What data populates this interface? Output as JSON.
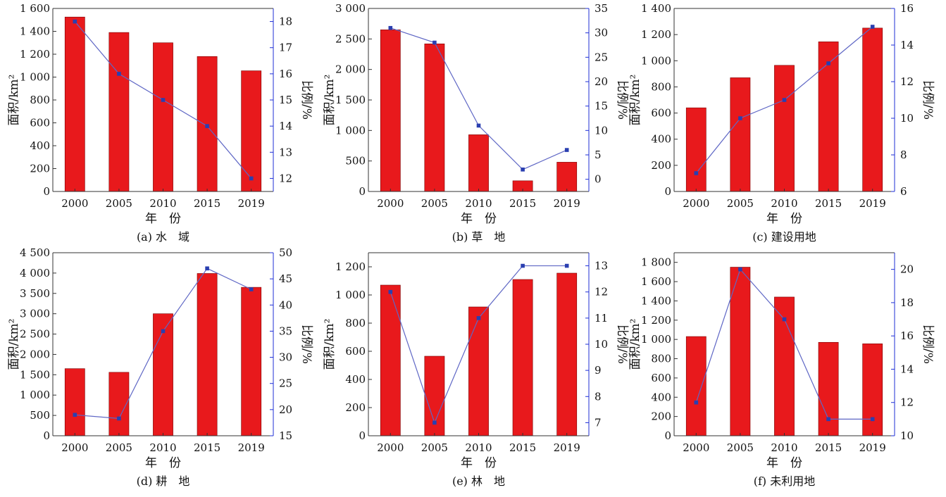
{
  "colors": {
    "bar": "#e8191c",
    "bar_edge": "#7a0000",
    "line": "#5f67c5",
    "marker": "#2a3fb0",
    "axis": "#333333",
    "right_axis": "#1f2fd6"
  },
  "chart_data": [
    {
      "type": "bar+line",
      "caption": "(a) 水　域",
      "xlabel": "年　份",
      "ylabel_left": "面积/km²",
      "ylabel_right": "比例/%",
      "categories": [
        "2000",
        "2005",
        "2010",
        "2015",
        "2019"
      ],
      "left_axis": {
        "min": 0,
        "max": 1600,
        "ticks": [
          0,
          200,
          400,
          600,
          800,
          1000,
          1200,
          1400,
          1600
        ],
        "tick_labels": [
          "0",
          "200",
          "400",
          "600",
          "800",
          "1 000",
          "1 200",
          "1 400",
          "1 600"
        ]
      },
      "right_axis": {
        "min": 11.5,
        "max": 18.5,
        "ticks": [
          12,
          13,
          14,
          15,
          16,
          17,
          18
        ],
        "tick_labels": [
          "12",
          "13",
          "14",
          "15",
          "16",
          "17",
          "18"
        ]
      },
      "series": [
        {
          "kind": "bar",
          "axis": "left",
          "values": [
            1525,
            1390,
            1300,
            1180,
            1055
          ]
        },
        {
          "kind": "line",
          "axis": "right",
          "values": [
            18.0,
            16.0,
            15.0,
            14.0,
            12.0
          ]
        }
      ]
    },
    {
      "type": "bar+line",
      "caption": "(b) 草　地",
      "xlabel": "年　份",
      "ylabel_left": "面积/km²",
      "ylabel_right": "比例/%",
      "categories": [
        "2000",
        "2005",
        "2010",
        "2015",
        "2019"
      ],
      "left_axis": {
        "min": 0,
        "max": 3000,
        "ticks": [
          0,
          500,
          1000,
          1500,
          2000,
          2500,
          3000
        ],
        "tick_labels": [
          "0",
          "500",
          "1 000",
          "1 500",
          "2 000",
          "2 500",
          "3 000"
        ]
      },
      "right_axis": {
        "min": -2.5,
        "max": 35,
        "ticks": [
          0,
          5,
          10,
          15,
          20,
          25,
          30,
          35
        ],
        "tick_labels": [
          "0",
          "5",
          "10",
          "15",
          "20",
          "25",
          "30",
          "35"
        ]
      },
      "series": [
        {
          "kind": "bar",
          "axis": "left",
          "values": [
            2650,
            2420,
            930,
            175,
            480
          ]
        },
        {
          "kind": "line",
          "axis": "right",
          "values": [
            31,
            28,
            11,
            2,
            6
          ]
        }
      ]
    },
    {
      "type": "bar+line",
      "caption": "(c) 建设用地",
      "xlabel": "年　份",
      "ylabel_left": "面积/km²",
      "ylabel_right": "比例/%",
      "categories": [
        "2000",
        "2005",
        "2010",
        "2015",
        "2019"
      ],
      "left_axis": {
        "min": 0,
        "max": 1400,
        "ticks": [
          0,
          200,
          400,
          600,
          800,
          1000,
          1200,
          1400
        ],
        "tick_labels": [
          "0",
          "200",
          "400",
          "600",
          "800",
          "1 000",
          "1 200",
          "1 400"
        ]
      },
      "right_axis": {
        "min": 6,
        "max": 16,
        "ticks": [
          6,
          8,
          10,
          12,
          14,
          16
        ],
        "tick_labels": [
          "6",
          "8",
          "10",
          "12",
          "14",
          "16"
        ]
      },
      "series": [
        {
          "kind": "bar",
          "axis": "left",
          "values": [
            640,
            870,
            965,
            1145,
            1250
          ]
        },
        {
          "kind": "line",
          "axis": "right",
          "values": [
            7,
            10,
            11,
            13,
            15
          ]
        }
      ]
    },
    {
      "type": "bar+line",
      "caption": "(d) 耕　地",
      "xlabel": "年　份",
      "ylabel_left": "面积/km²",
      "ylabel_right": "比例/%",
      "categories": [
        "2000",
        "2005",
        "2010",
        "2015",
        "2019"
      ],
      "left_axis": {
        "min": 0,
        "max": 4500,
        "ticks": [
          0,
          500,
          1000,
          1500,
          2000,
          2500,
          3000,
          3500,
          4000,
          4500
        ],
        "tick_labels": [
          "0",
          "500",
          "1 000",
          "1 500",
          "2 000",
          "2 500",
          "3 000",
          "3 500",
          "4 000",
          "4 500"
        ]
      },
      "right_axis": {
        "min": 15,
        "max": 50,
        "ticks": [
          15,
          20,
          25,
          30,
          35,
          40,
          45,
          50
        ],
        "tick_labels": [
          "15",
          "20",
          "25",
          "30",
          "35",
          "40",
          "45",
          "50"
        ]
      },
      "series": [
        {
          "kind": "bar",
          "axis": "left",
          "values": [
            1650,
            1560,
            3000,
            3990,
            3650
          ]
        },
        {
          "kind": "line",
          "axis": "right",
          "values": [
            19,
            18.3,
            35,
            47,
            43
          ]
        }
      ]
    },
    {
      "type": "bar+line",
      "caption": "(e) 林　地",
      "xlabel": "年　份",
      "ylabel_left": "面积/km²",
      "ylabel_right": "比例/%",
      "categories": [
        "2000",
        "2005",
        "2010",
        "2015",
        "2019"
      ],
      "left_axis": {
        "min": 0,
        "max": 1300,
        "ticks": [
          0,
          200,
          400,
          600,
          800,
          1000,
          1200
        ],
        "tick_labels": [
          "0",
          "200",
          "400",
          "600",
          "800",
          "1 000",
          "1 200"
        ]
      },
      "right_axis": {
        "min": 6.5,
        "max": 13.5,
        "ticks": [
          7,
          8,
          9,
          10,
          11,
          12,
          13
        ],
        "tick_labels": [
          "7",
          "8",
          "9",
          "10",
          "11",
          "12",
          "13"
        ]
      },
      "series": [
        {
          "kind": "bar",
          "axis": "left",
          "values": [
            1070,
            565,
            915,
            1110,
            1155
          ]
        },
        {
          "kind": "line",
          "axis": "right",
          "values": [
            12,
            7,
            11,
            13,
            13
          ]
        }
      ]
    },
    {
      "type": "bar+line",
      "caption": "(f) 未利用地",
      "xlabel": "年　份",
      "ylabel_left": "面积/km²",
      "ylabel_right": "比例/%",
      "categories": [
        "2000",
        "2005",
        "2010",
        "2015",
        "2019"
      ],
      "left_axis": {
        "min": 0,
        "max": 1900,
        "ticks": [
          0,
          200,
          400,
          600,
          800,
          1000,
          1200,
          1400,
          1600,
          1800
        ],
        "tick_labels": [
          "0",
          "200",
          "400",
          "600",
          "800",
          "1 000",
          "1 200",
          "1 400",
          "1 600",
          "1 800"
        ]
      },
      "right_axis": {
        "min": 10,
        "max": 21,
        "ticks": [
          10,
          12,
          14,
          16,
          18,
          20
        ],
        "tick_labels": [
          "10",
          "12",
          "14",
          "16",
          "18",
          "20"
        ]
      },
      "series": [
        {
          "kind": "bar",
          "axis": "left",
          "values": [
            1030,
            1750,
            1440,
            970,
            955
          ]
        },
        {
          "kind": "line",
          "axis": "right",
          "values": [
            12,
            20,
            17,
            11,
            11
          ]
        }
      ]
    }
  ]
}
